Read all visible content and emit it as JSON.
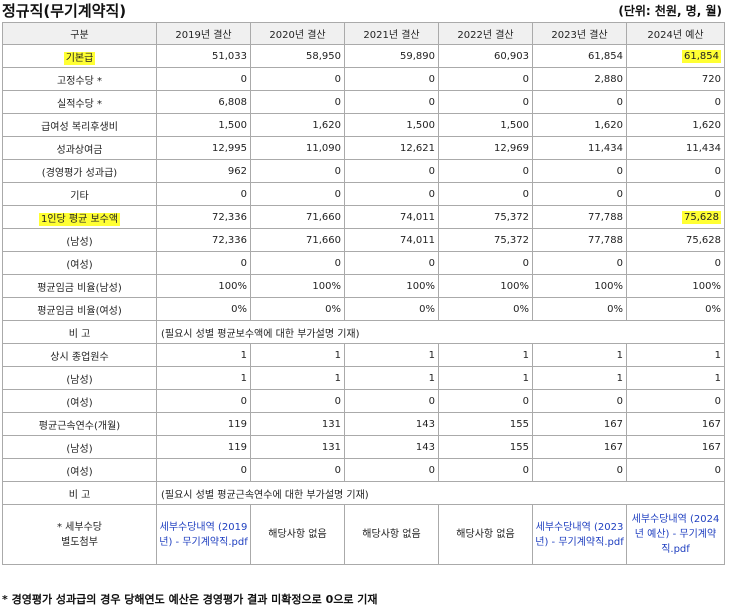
{
  "title": "정규직(무기계약직)",
  "unit": "(단위: 천원, 명, 월)",
  "headers": [
    "구분",
    "2019년 결산",
    "2020년 결산",
    "2021년 결산",
    "2022년 결산",
    "2023년 결산",
    "2024년 예산"
  ],
  "rows": [
    {
      "label": "기본급",
      "values": [
        "51,033",
        "58,950",
        "59,890",
        "60,903",
        "61,854",
        "61,854"
      ]
    },
    {
      "label": "고정수당 *",
      "values": [
        "0",
        "0",
        "0",
        "0",
        "2,880",
        "720"
      ]
    },
    {
      "label": "실적수당 *",
      "values": [
        "6,808",
        "0",
        "0",
        "0",
        "0",
        "0"
      ]
    },
    {
      "label": "급여성 복리후생비",
      "values": [
        "1,500",
        "1,620",
        "1,500",
        "1,500",
        "1,620",
        "1,620"
      ]
    },
    {
      "label": "성과상여금",
      "values": [
        "12,995",
        "11,090",
        "12,621",
        "12,969",
        "11,434",
        "11,434"
      ]
    },
    {
      "label": "(경영평가 성과급)",
      "values": [
        "962",
        "0",
        "0",
        "0",
        "0",
        "0"
      ]
    },
    {
      "label": "기타",
      "values": [
        "0",
        "0",
        "0",
        "0",
        "0",
        "0"
      ]
    },
    {
      "label": "1인당 평균 보수액",
      "values": [
        "72,336",
        "71,660",
        "74,011",
        "75,372",
        "77,788",
        "75,628"
      ]
    },
    {
      "label": "(남성)",
      "values": [
        "72,336",
        "71,660",
        "74,011",
        "75,372",
        "77,788",
        "75,628"
      ]
    },
    {
      "label": "(여성)",
      "values": [
        "0",
        "0",
        "0",
        "0",
        "0",
        "0"
      ]
    },
    {
      "label": "평균임금 비율(남성)",
      "values": [
        "100%",
        "100%",
        "100%",
        "100%",
        "100%",
        "100%"
      ]
    },
    {
      "label": "평균임금 비율(여성)",
      "values": [
        "0%",
        "0%",
        "0%",
        "0%",
        "0%",
        "0%"
      ]
    }
  ],
  "note1": {
    "label": "비 고",
    "text": "(필요시 성별 평균보수액에 대한 부가설명 기재)"
  },
  "rows2": [
    {
      "label": "상시 종업원수",
      "values": [
        "1",
        "1",
        "1",
        "1",
        "1",
        "1"
      ]
    },
    {
      "label": "(남성)",
      "values": [
        "1",
        "1",
        "1",
        "1",
        "1",
        "1"
      ]
    },
    {
      "label": "(여성)",
      "values": [
        "0",
        "0",
        "0",
        "0",
        "0",
        "0"
      ]
    },
    {
      "label": "평균근속연수(개월)",
      "values": [
        "119",
        "131",
        "143",
        "155",
        "167",
        "167"
      ]
    },
    {
      "label": "(남성)",
      "values": [
        "119",
        "131",
        "143",
        "155",
        "167",
        "167"
      ]
    },
    {
      "label": "(여성)",
      "values": [
        "0",
        "0",
        "0",
        "0",
        "0",
        "0"
      ]
    }
  ],
  "note2": {
    "label": "비 고",
    "text": "(필요시 성별 평균근속연수에 대한 부가설명 기재)"
  },
  "attach": {
    "label_line1": "* 세부수당",
    "label_line2": "별도첨부",
    "cells": [
      {
        "text": "세부수당내역 (2019년) - 무기계약직.pdf",
        "link": true
      },
      {
        "text": "해당사항 없음",
        "link": false
      },
      {
        "text": "해당사항 없음",
        "link": false
      },
      {
        "text": "해당사항 없음",
        "link": false
      },
      {
        "text": "세부수당내역 (2023년) - 무기계약직.pdf",
        "link": true
      },
      {
        "text": "세부수당내역 (2024년 예산) - 무기계약직.pdf",
        "link": true
      }
    ]
  },
  "footnote": "* 경영평가 성과급의 경우 당해연도 예산은 경영평가 결과 미확정으로 0으로 기재",
  "highlight_color": "#ffff33"
}
